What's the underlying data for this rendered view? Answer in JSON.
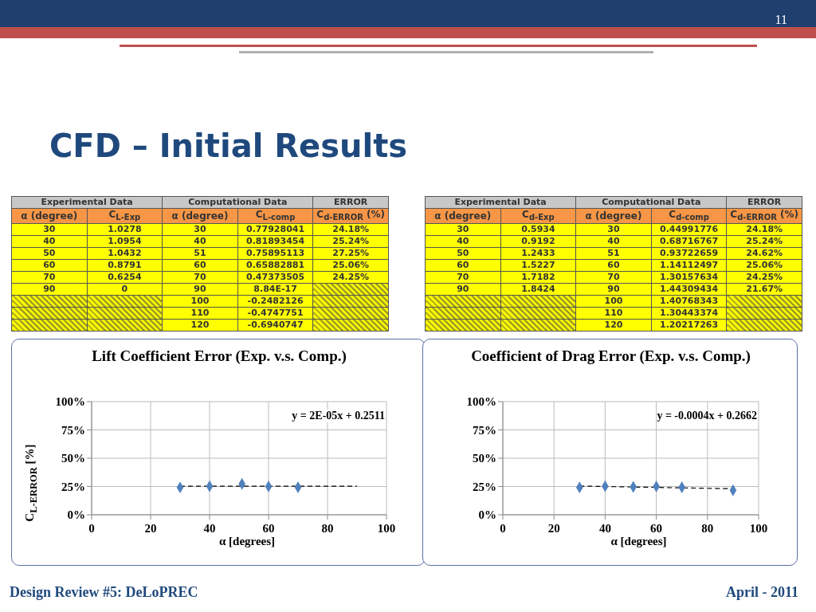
{
  "chart_data": [
    {
      "type": "other",
      "title": "CFD – Initial Results",
      "annotations": [
        "11",
        "Design Review #5: DeLoPREC",
        "April - 2011"
      ]
    },
    {
      "type": "other",
      "annotations": [
        "Experimental Data",
        "Computational Data",
        "ERROR",
        "α (degree)",
        "C$_{L-Exp}$",
        "α (degree)",
        "C$_{L-comp}$",
        "C$_{d-ERROR}$ (%)",
        "30",
        "1.0278",
        "30",
        "0.77928041",
        "24.18%",
        "40",
        "1.0954",
        "40",
        "0.81893454",
        "25.24%",
        "50",
        "1.0432",
        "51",
        "0.75895113",
        "27.25%",
        "60",
        "0.8791",
        "60",
        "0.65882881",
        "25.06%",
        "70",
        "0.6254",
        "70",
        "0.47373505",
        "24.25%",
        "90",
        "0",
        "90",
        "8.84E-17",
        null,
        null,
        null,
        "100",
        "-0.2482126",
        null,
        null,
        null,
        "110",
        "-0.4747751",
        null,
        null,
        null,
        "120",
        "-0.6940747",
        null
      ]
    },
    {
      "type": "other",
      "annotations": [
        "Experimental Data",
        "Computational Data",
        "ERROR",
        "α (degree)",
        "C$_{d-Exp}$",
        "α (degree)",
        "C$_{d-comp}$",
        "C$_{d-ERROR}$ (%)",
        "30",
        "0.5934",
        "30",
        "0.44991776",
        "24.18%",
        "40",
        "0.9192",
        "40",
        "0.68716767",
        "25.24%",
        "50",
        "1.2433",
        "51",
        "0.93722659",
        "24.62%",
        "60",
        "1.5227",
        "60",
        "1.14112497",
        "25.06%",
        "70",
        "1.7182",
        "70",
        "1.30157634",
        "24.25%",
        "90",
        "1.8424",
        "90",
        "1.44309434",
        "21.67%",
        null,
        null,
        "100",
        "1.40768343",
        null,
        null,
        null,
        "110",
        "1.30443374",
        null,
        null,
        null,
        "120",
        "1.20217263",
        null
      ]
    },
    {
      "type": "scatter",
      "title": "Lift Coefficient Error (Exp. v.s. Comp.)",
      "xlabel": "α [degrees]",
      "ylabel": "C$_{L-ERROR}$ [%]",
      "annotations": [
        "y = 2E-05x + 0.2511"
      ],
      "xlim": [
        0,
        100
      ],
      "xticks": [
        0,
        20,
        40,
        60,
        80,
        100
      ],
      "ylim": [
        0,
        100
      ],
      "yticks": [
        {
          "value": 0,
          "label": "0%"
        },
        {
          "value": 25,
          "label": "25%"
        },
        {
          "value": 50,
          "label": "50%"
        },
        {
          "value": 75,
          "label": "75%"
        },
        {
          "value": 100,
          "label": "100%"
        }
      ],
      "grid": true,
      "series": [
        {
          "type": "scatter",
          "x": [
            30,
            40,
            51,
            60,
            70
          ],
          "values": [
            24.18,
            25.24,
            27.25,
            25.06,
            24.25
          ],
          "color": "#4f81bd",
          "marker": "diamond"
        },
        {
          "type": "line",
          "x": [
            30,
            90
          ],
          "values": [
            25.2,
            25.3
          ],
          "color": "#000000",
          "line_style": "dashed",
          "marker": "none"
        }
      ]
    },
    {
      "type": "scatter",
      "title": "Coefficient of Drag Error (Exp. v.s. Comp.)",
      "xlabel": "α [degrees]",
      "annotations": [
        "y = -0.0004x + 0.2662"
      ],
      "xlim": [
        0,
        100
      ],
      "xticks": [
        0,
        20,
        40,
        60,
        80,
        100
      ],
      "ylim": [
        0,
        100
      ],
      "yticks": [
        {
          "value": 0,
          "label": "0%"
        },
        {
          "value": 25,
          "label": "25%"
        },
        {
          "value": 50,
          "label": "50%"
        },
        {
          "value": 75,
          "label": "75%"
        },
        {
          "value": 100,
          "label": "100%"
        }
      ],
      "grid": true,
      "series": [
        {
          "type": "scatter",
          "x": [
            30,
            40,
            51,
            60,
            70,
            90
          ],
          "values": [
            24.18,
            25.24,
            24.62,
            25.06,
            24.25,
            21.67
          ],
          "color": "#4f81bd",
          "marker": "diamond"
        },
        {
          "type": "line",
          "x": [
            30,
            90
          ],
          "values": [
            25.4,
            23.0
          ],
          "color": "#000000",
          "line_style": "dashed",
          "marker": "none"
        }
      ]
    }
  ]
}
